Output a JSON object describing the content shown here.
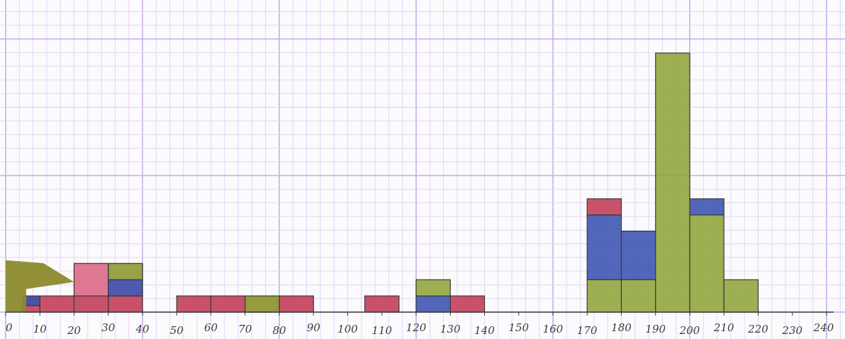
{
  "chart_data": {
    "type": "bar",
    "subtype": "stacked-histogram",
    "title": "",
    "xlabel": "",
    "ylabel": "",
    "xlim": [
      0,
      240
    ],
    "ylim": [
      0,
      4.5
    ],
    "grid": true,
    "bin_width": 10,
    "x_ticks": [
      "0",
      "10",
      "20",
      "30",
      "40",
      "50",
      "60",
      "70",
      "80",
      "90",
      "100",
      "110",
      "120",
      "130",
      "140",
      "150",
      "160",
      "170",
      "180",
      "190",
      "200",
      "210",
      "220",
      "230",
      "240"
    ],
    "colors": {
      "red": "#c23a55",
      "blue": "#3a52b0",
      "green": "#8ea53a",
      "pink": "#e27d98",
      "olive": "#8c8a2c",
      "grid_minor": "#e2d2f4",
      "grid_major": "#c8aeea",
      "outline": "#3a3a3a"
    },
    "series": [
      {
        "name": "",
        "color": "red",
        "values": [
          {
            "x0": 5,
            "x1": 10,
            "y0": 0,
            "y1": 0.25
          },
          {
            "x0": 10,
            "x1": 20,
            "y0": 0,
            "y1": 0.25
          },
          {
            "x0": 20,
            "x1": 30,
            "y0": 0,
            "y1": 0.75
          },
          {
            "x0": 30,
            "x1": 40,
            "y0": 0,
            "y1": 0.25
          },
          {
            "x0": 50,
            "x1": 60,
            "y0": 0,
            "y1": 0.25
          },
          {
            "x0": 60,
            "x1": 70,
            "y0": 0,
            "y1": 0.25
          },
          {
            "x0": 70,
            "x1": 80,
            "y0": 0,
            "y1": 0.25
          },
          {
            "x0": 80,
            "x1": 90,
            "y0": 0,
            "y1": 0.25
          },
          {
            "x0": 105,
            "x1": 115,
            "y0": 0,
            "y1": 0.25
          },
          {
            "x0": 130,
            "x1": 140,
            "y0": 0,
            "y1": 0.25
          },
          {
            "x0": 170,
            "x1": 180,
            "y0": 1.5,
            "y1": 1.75
          }
        ]
      },
      {
        "name": "",
        "color": "pink",
        "values": [
          {
            "x0": 20,
            "x1": 30,
            "y0": 0.25,
            "y1": 0.75
          },
          {
            "x0": 30,
            "x1": 40,
            "y0": 0.25,
            "y1": 0.75
          }
        ]
      },
      {
        "name": "",
        "color": "blue",
        "values": [
          {
            "x0": 5,
            "x1": 10,
            "y0": 0.1,
            "y1": 0.25
          },
          {
            "x0": 30,
            "x1": 40,
            "y0": 0.25,
            "y1": 0.5
          },
          {
            "x0": 120,
            "x1": 130,
            "y0": 0,
            "y1": 0.25
          },
          {
            "x0": 170,
            "x1": 180,
            "y0": 0.5,
            "y1": 1.5
          },
          {
            "x0": 180,
            "x1": 190,
            "y0": 0.5,
            "y1": 1.25
          },
          {
            "x0": 200,
            "x1": 210,
            "y0": 1.5,
            "y1": 1.75
          }
        ]
      },
      {
        "name": "",
        "color": "green",
        "values": [
          {
            "x0": 30,
            "x1": 40,
            "y0": 0.5,
            "y1": 0.75
          },
          {
            "x0": 70,
            "x1": 80,
            "y0": 0,
            "y1": 0.25
          },
          {
            "x0": 120,
            "x1": 130,
            "y0": 0.25,
            "y1": 0.5
          },
          {
            "x0": 170,
            "x1": 180,
            "y0": 0,
            "y1": 0.5
          },
          {
            "x0": 180,
            "x1": 190,
            "y0": 0,
            "y1": 0.5
          },
          {
            "x0": 190,
            "x1": 200,
            "y0": 0,
            "y1": 4.0
          },
          {
            "x0": 200,
            "x1": 210,
            "y0": 0,
            "y1": 1.5
          },
          {
            "x0": 210,
            "x1": 220,
            "y0": 0,
            "y1": 0.5
          }
        ]
      }
    ],
    "annotations": [
      {
        "type": "mark",
        "shape": "wedge",
        "color": "olive",
        "x0": 0,
        "x1": 20,
        "y0": 0,
        "y1": 0.8
      }
    ]
  }
}
